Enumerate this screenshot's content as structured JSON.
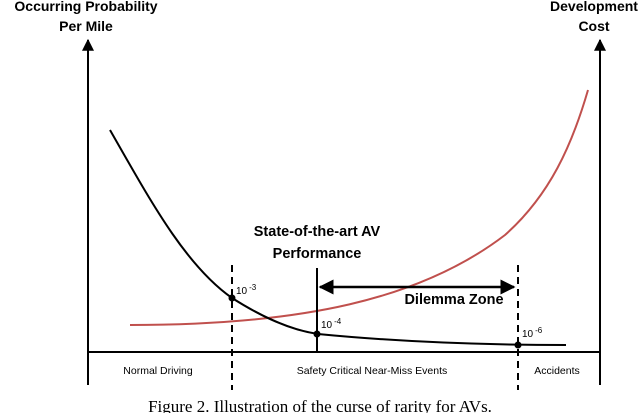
{
  "y_axis_left": {
    "line1": "Occurring Probability",
    "line2": "Per Mile"
  },
  "y_axis_right": {
    "line1": "Development",
    "line2": "Cost"
  },
  "regions": {
    "normal": "Normal Driving",
    "safety": "Safety Critical Near-Miss Events",
    "accidents": "Accidents"
  },
  "ticks": [
    {
      "base": "10",
      "exp": "-3"
    },
    {
      "base": "10",
      "exp": "-4"
    },
    {
      "base": "10",
      "exp": "-6"
    }
  ],
  "sota": {
    "line1": "State-of-the-art AV",
    "line2": "Performance"
  },
  "dilemma": "Dilemma Zone",
  "caption": "Figure 2. Illustration of the curse of rarity for AVs.",
  "colors": {
    "probability_curve": "#000000",
    "cost_curve": "#c0504d"
  }
}
